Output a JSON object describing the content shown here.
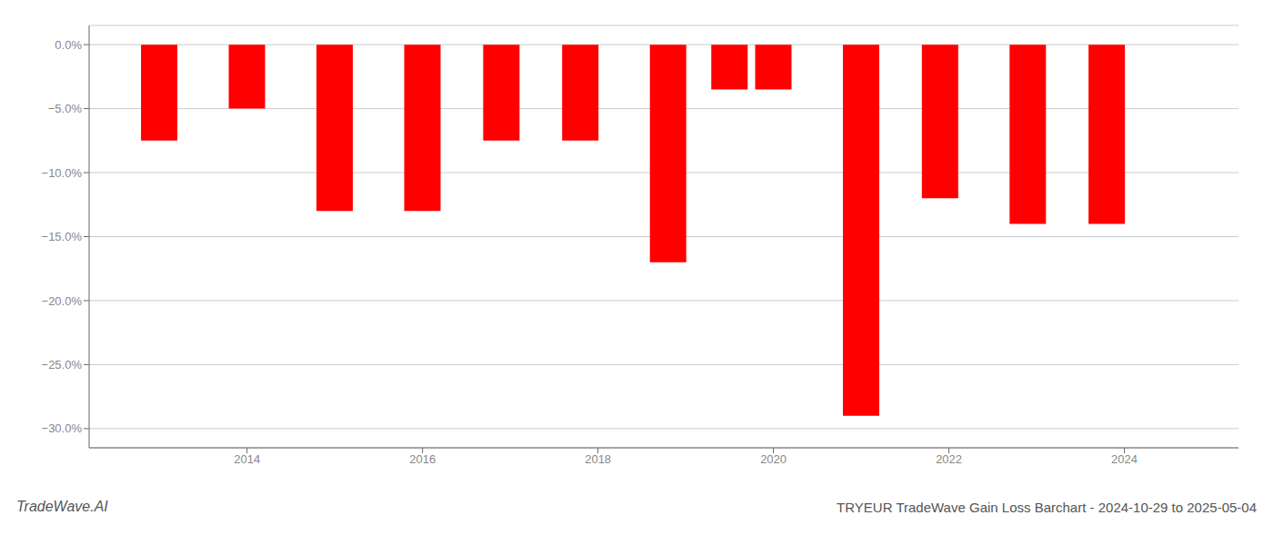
{
  "chart_data": {
    "type": "bar",
    "title": "TRYEUR TradeWave Gain Loss Barchart - 2024-10-29 to 2025-05-04",
    "annotations": [
      "TradeWave.AI"
    ],
    "x": [
      2013.0,
      2014.0,
      2015.0,
      2016.0,
      2016.9,
      2017.8,
      2018.8,
      2019.5,
      2020.0,
      2021.0,
      2021.9,
      2022.9,
      2023.8
    ],
    "values": [
      -7.5,
      -5.0,
      -13.0,
      -13.0,
      -7.5,
      -7.5,
      -17.0,
      -3.5,
      -3.5,
      -29.0,
      -12.0,
      -14.0,
      -14.0
    ],
    "color": "#ff0000",
    "xlim": [
      2012.2,
      2025.3
    ],
    "ylim": [
      -31.5,
      1.5
    ],
    "xticks": [
      2014,
      2016,
      2018,
      2020,
      2022,
      2024
    ],
    "yticks": [
      {
        "value": 0.0,
        "label": "0.0%"
      },
      {
        "value": -5.0,
        "label": "−5.0%"
      },
      {
        "value": -10.0,
        "label": "−10.0%"
      },
      {
        "value": -15.0,
        "label": "−15.0%"
      },
      {
        "value": -20.0,
        "label": "−20.0%"
      },
      {
        "value": -25.0,
        "label": "−25.0%"
      },
      {
        "value": -30.0,
        "label": "−30.0%"
      }
    ],
    "grid": true
  }
}
